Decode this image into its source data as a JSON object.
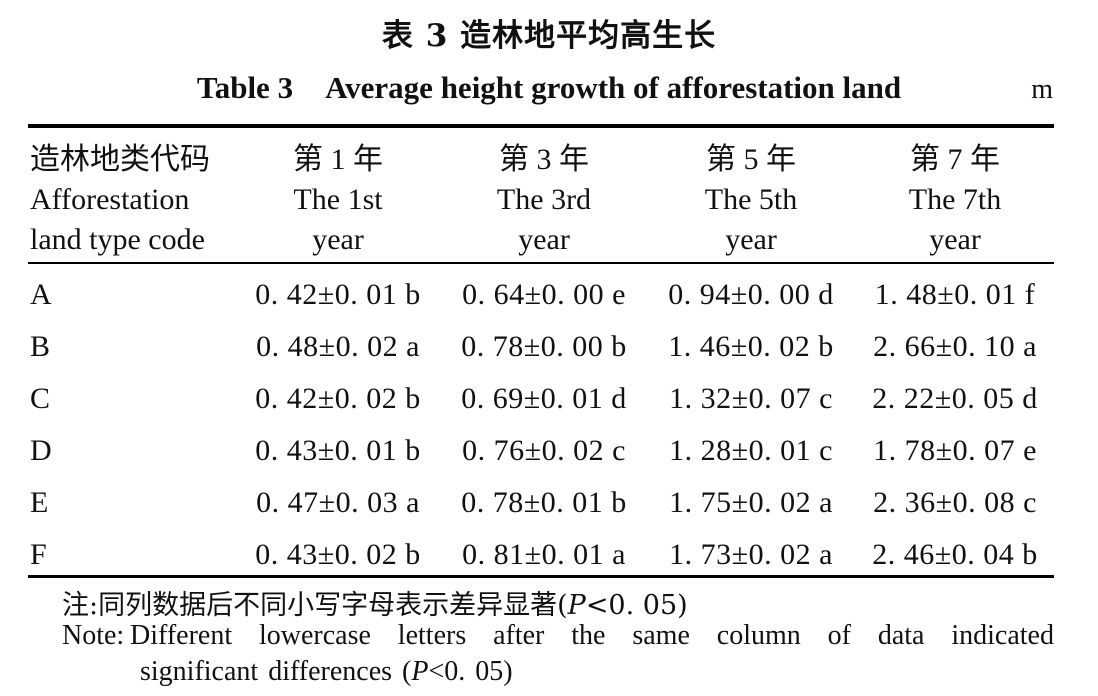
{
  "title_zh": "表 3   造林地平均高生长",
  "title_en_num": "Table 3",
  "title_en_text": "Average height growth of afforestation land",
  "unit": "m",
  "header": {
    "first_zh": "造林地类代码",
    "first_en1": "Afforestation",
    "first_en2": "land type code",
    "cols": [
      {
        "zh": "第 1 年",
        "en1": "The 1st",
        "en2": "year"
      },
      {
        "zh": "第 3 年",
        "en1": "The 3rd",
        "en2": "year"
      },
      {
        "zh": "第 5 年",
        "en1": "The 5th",
        "en2": "year"
      },
      {
        "zh": "第 7 年",
        "en1": "The 7th",
        "en2": "year"
      }
    ]
  },
  "rows": [
    {
      "code": "A",
      "v": [
        "0. 42±0. 01 b",
        "0. 64±0. 00 e",
        "0. 94±0. 00 d",
        "1. 48±0. 01 f"
      ]
    },
    {
      "code": "B",
      "v": [
        "0. 48±0. 02 a",
        "0. 78±0. 00 b",
        "1. 46±0. 02 b",
        "2. 66±0. 10 a"
      ]
    },
    {
      "code": "C",
      "v": [
        "0. 42±0. 02 b",
        "0. 69±0. 01 d",
        "1. 32±0. 07 c",
        "2. 22±0. 05 d"
      ]
    },
    {
      "code": "D",
      "v": [
        "0. 43±0. 01 b",
        "0. 76±0. 02 c",
        "1. 28±0. 01 c",
        "1. 78±0. 07 e"
      ]
    },
    {
      "code": "E",
      "v": [
        "0. 47±0. 03 a",
        "0. 78±0. 01 b",
        "1. 75±0. 02 a",
        "2. 36±0. 08 c"
      ]
    },
    {
      "code": "F",
      "v": [
        "0. 43±0. 02 b",
        "0. 81±0. 01 a",
        "1. 73±0. 02 a",
        "2. 46±0. 04 b"
      ]
    }
  ],
  "note": {
    "zh_prefix": "注:同列数据后不同小写字母表示差异显著(",
    "p": "P",
    "zh_suffix": "<0. 05)",
    "en_label": "Note:",
    "en_line1": "Different lowercase letters after the same column of data indicated",
    "en_line2_prefix": "significant differences (",
    "en_line2_suffix": "<0. 05)"
  }
}
